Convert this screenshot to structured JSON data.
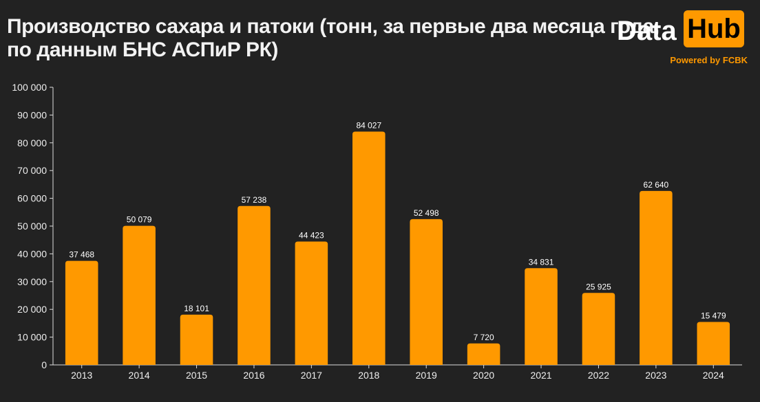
{
  "header": {
    "title_line1": "Производство сахара и патоки (тонн, за первые два месяца года,",
    "title_line2": "по данным БНС АСПиР РК)"
  },
  "logo": {
    "data_text": "Data",
    "hub_text": "Hub",
    "powered_by": "Powered by FCBK"
  },
  "colors": {
    "background": "#222222",
    "bar": "#ff9900",
    "accent": "#ff9900",
    "axis": "#dddddd"
  },
  "chart_data": {
    "type": "bar",
    "title": "Производство сахара и патоки (тонн, за первые два месяца года, по данным БНС АСПиР РК)",
    "categories": [
      "2013",
      "2014",
      "2015",
      "2016",
      "2017",
      "2018",
      "2019",
      "2020",
      "2021",
      "2022",
      "2023",
      "2024"
    ],
    "values": [
      37468,
      50079,
      18101,
      57238,
      44423,
      84027,
      52498,
      7720,
      34831,
      25925,
      62640,
      15479
    ],
    "value_labels": [
      "37 468",
      "50 079",
      "18 101",
      "57 238",
      "44 423",
      "84 027",
      "52 498",
      "7 720",
      "34 831",
      "25 925",
      "62 640",
      "15 479"
    ],
    "yticks": [
      0,
      10000,
      20000,
      30000,
      40000,
      50000,
      60000,
      70000,
      80000,
      90000,
      100000
    ],
    "ytick_labels": [
      "0",
      "10 000",
      "20 000",
      "30 000",
      "40 000",
      "50 000",
      "60 000",
      "70 000",
      "80 000",
      "90 000",
      "100 000"
    ],
    "ylim": [
      0,
      100000
    ],
    "xlabel": "",
    "ylabel": "",
    "grid": false,
    "legend": "none"
  }
}
